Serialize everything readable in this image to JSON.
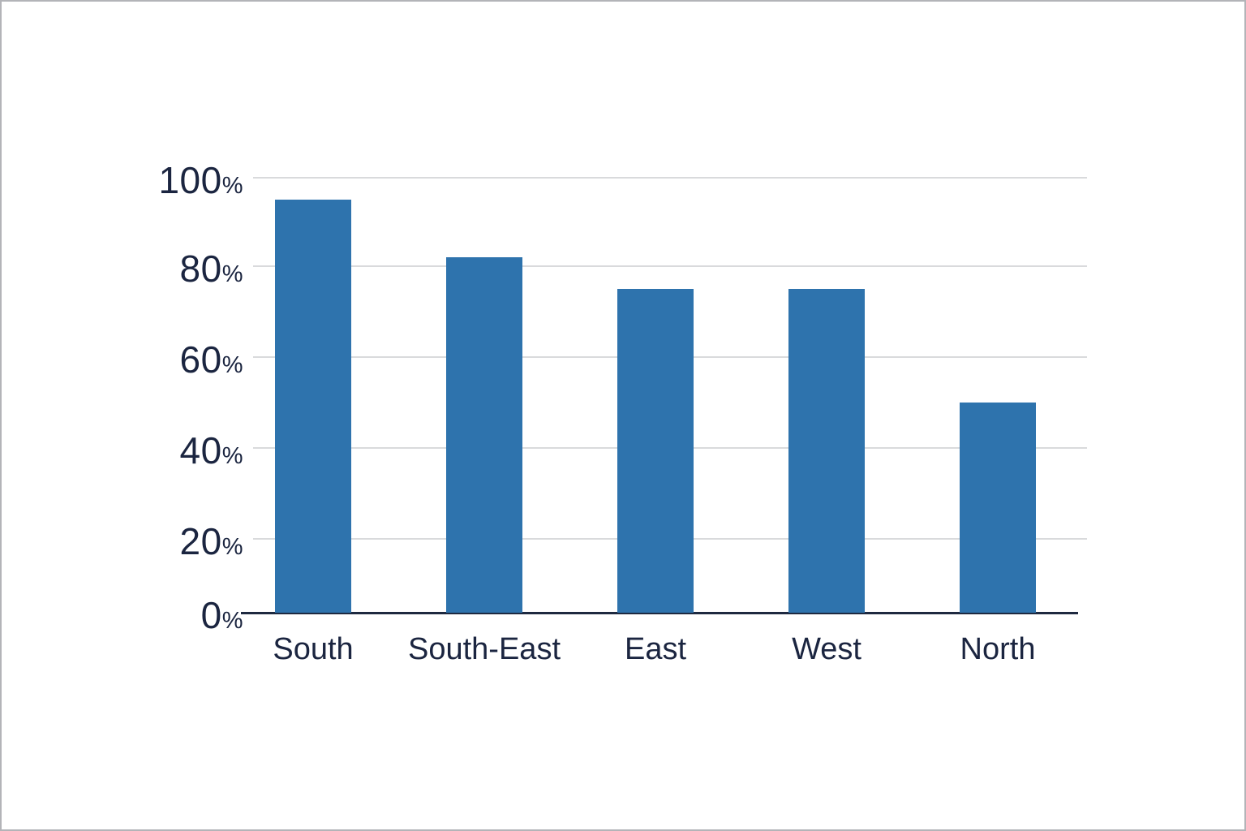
{
  "chart_data": {
    "type": "bar",
    "categories": [
      "South",
      "South-East",
      "East",
      "West",
      "North"
    ],
    "values": [
      95,
      82,
      75,
      75,
      50
    ],
    "series_name": "",
    "unit": "%",
    "title": "",
    "xlabel": "",
    "ylabel": "",
    "ylim": [
      0,
      100
    ],
    "yticks": [
      0,
      20,
      40,
      60,
      80,
      100
    ],
    "grid": true,
    "legend": false,
    "colors": {
      "bar": "#2e73ad",
      "gridline": "#d9dadc",
      "axis_line": "#1e2940",
      "tick_text": "#1b2540",
      "label_text": "#1b2540",
      "background": "#ffffff",
      "frame_border": "#b3b4b8"
    }
  }
}
